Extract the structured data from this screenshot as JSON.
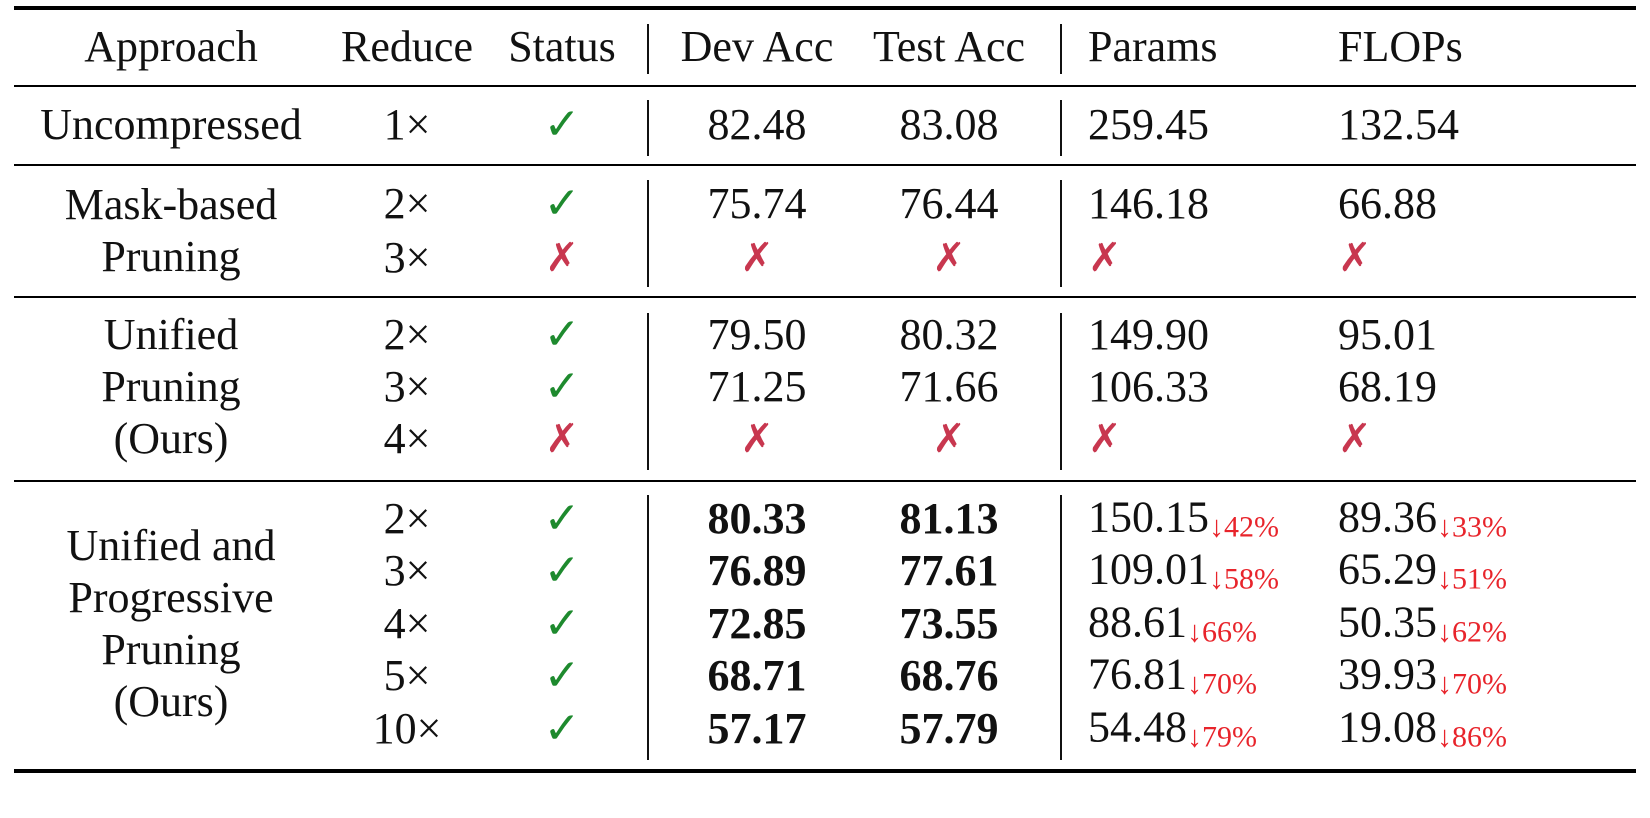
{
  "columns": [
    "Approach",
    "Reduce",
    "Status",
    "Dev Acc",
    "Test Acc",
    "Params",
    "FLOPs"
  ],
  "groups": [
    {
      "approach": [
        "Uncompressed"
      ],
      "rows": [
        {
          "reduce": "1×",
          "status": "✓",
          "dev": "82.48",
          "test": "83.08",
          "params": "259.45",
          "flops": "132.54"
        }
      ]
    },
    {
      "approach": [
        "Mask-based",
        "Pruning"
      ],
      "rows": [
        {
          "reduce": "2×",
          "status": "✓",
          "dev": "75.74",
          "test": "76.44",
          "params": "146.18",
          "flops": "66.88"
        },
        {
          "reduce": "3×",
          "status": "✗",
          "dev": "✗",
          "test": "✗",
          "params": "✗",
          "flops": "✗"
        }
      ]
    },
    {
      "approach": [
        "Unified",
        "Pruning",
        "(Ours)"
      ],
      "rows": [
        {
          "reduce": "2×",
          "status": "✓",
          "dev": "79.50",
          "test": "80.32",
          "params": "149.90",
          "flops": "95.01"
        },
        {
          "reduce": "3×",
          "status": "✓",
          "dev": "71.25",
          "test": "71.66",
          "params": "106.33",
          "flops": "68.19"
        },
        {
          "reduce": "4×",
          "status": "✗",
          "dev": "✗",
          "test": "✗",
          "params": "✗",
          "flops": "✗"
        }
      ]
    },
    {
      "approach": [
        "Unified and",
        "Progressive",
        "Pruning",
        "(Ours)"
      ],
      "rows": [
        {
          "reduce": "2×",
          "status": "✓",
          "dev": "80.33",
          "test": "81.13",
          "params": "150.15",
          "params_delta": "↓42%",
          "flops": "89.36",
          "flops_delta": "↓33%"
        },
        {
          "reduce": "3×",
          "status": "✓",
          "dev": "76.89",
          "test": "77.61",
          "params": "109.01",
          "params_delta": "↓58%",
          "flops": "65.29",
          "flops_delta": "↓51%"
        },
        {
          "reduce": "4×",
          "status": "✓",
          "dev": "72.85",
          "test": "73.55",
          "params": "88.61",
          "params_delta": "↓66%",
          "flops": "50.35",
          "flops_delta": "↓62%"
        },
        {
          "reduce": "5×",
          "status": "✓",
          "dev": "68.71",
          "test": "68.76",
          "params": "76.81",
          "params_delta": "↓70%",
          "flops": "39.93",
          "flops_delta": "↓70%"
        },
        {
          "reduce": "10×",
          "status": "✓",
          "dev": "57.17",
          "test": "57.79",
          "params": "54.48",
          "params_delta": "↓79%",
          "flops": "19.08",
          "flops_delta": "↓86%"
        }
      ]
    }
  ],
  "colors": {
    "check": "#1e8a2e",
    "cross": "#c8374f",
    "delta": "#e8242b"
  }
}
